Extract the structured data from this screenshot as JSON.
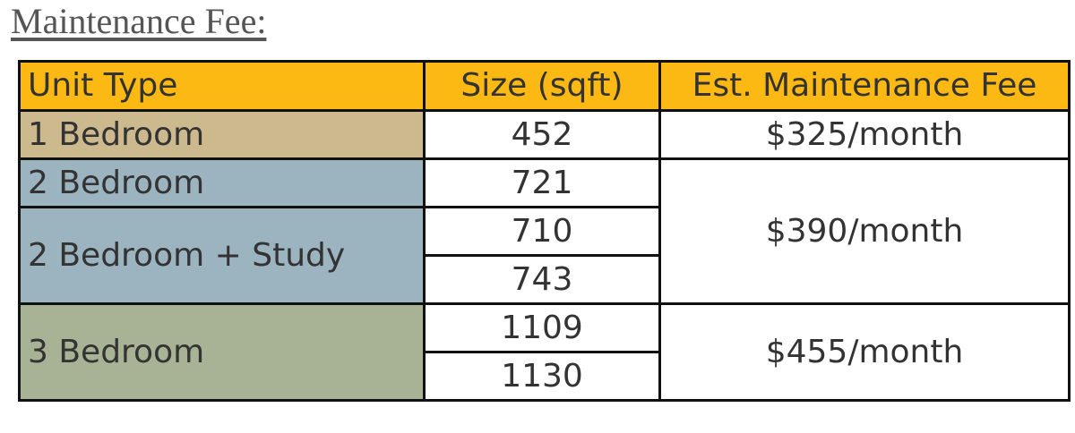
{
  "title": "Maintenance Fee:",
  "table": {
    "header": [
      "Unit Type",
      "Size (sqft)",
      "Est. Maintenance Fee"
    ],
    "header_color": "#fdb913",
    "fee_groups": [
      {
        "fee": "$325/month",
        "units": [
          {
            "type": "1 Bedroom",
            "color": "#cdb98e",
            "sizes": [
              452
            ]
          }
        ]
      },
      {
        "fee": "$390/month",
        "units": [
          {
            "type": "2 Bedroom",
            "color": "#9cb3c0",
            "sizes": [
              721
            ]
          },
          {
            "type": "2 Bedroom + Study",
            "color": "#9cb3c0",
            "sizes": [
              710,
              743
            ]
          }
        ]
      },
      {
        "fee": "$455/month",
        "units": [
          {
            "type": "3 Bedroom",
            "color": "#a8b295",
            "sizes": [
              1109,
              1130
            ]
          }
        ]
      }
    ]
  }
}
